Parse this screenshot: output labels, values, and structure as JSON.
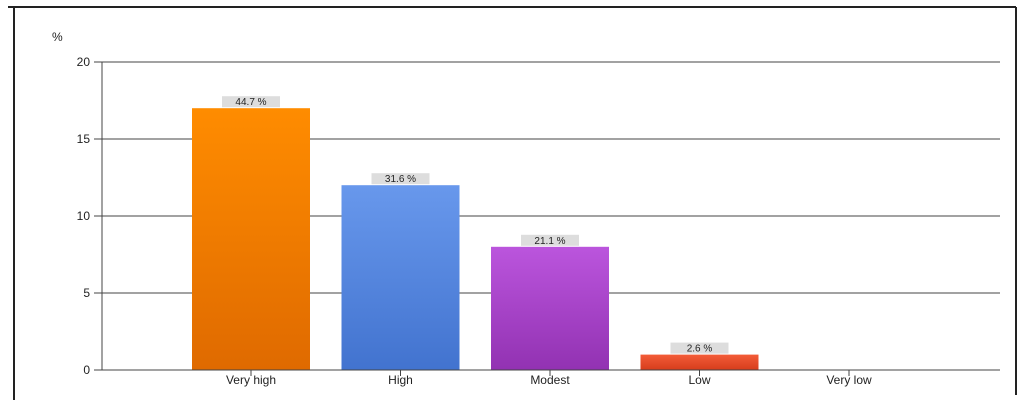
{
  "chart_data": {
    "type": "bar",
    "ylabel": "%",
    "ylim": [
      0,
      20
    ],
    "yticks": [
      0,
      5,
      10,
      15,
      20
    ],
    "grid": true,
    "categories": [
      "Very high",
      "High",
      "Modest",
      "Low",
      "Very low"
    ],
    "values": [
      17,
      12,
      8,
      1,
      0
    ],
    "data_labels": [
      "44.7 %",
      "31.6 %",
      "21.1 %",
      "2.6 %",
      null
    ],
    "colors": [
      {
        "top": "#ff8c00",
        "bottom": "#df6a00"
      },
      {
        "top": "#6898ec",
        "bottom": "#4273cf"
      },
      {
        "top": "#bb55dd",
        "bottom": "#9232b2"
      },
      {
        "top": "#f45c38",
        "bottom": "#d63d1c"
      },
      {
        "top": "#999999",
        "bottom": "#777777"
      }
    ],
    "label_bg": "#dddddd",
    "grid_color": "#444444"
  }
}
